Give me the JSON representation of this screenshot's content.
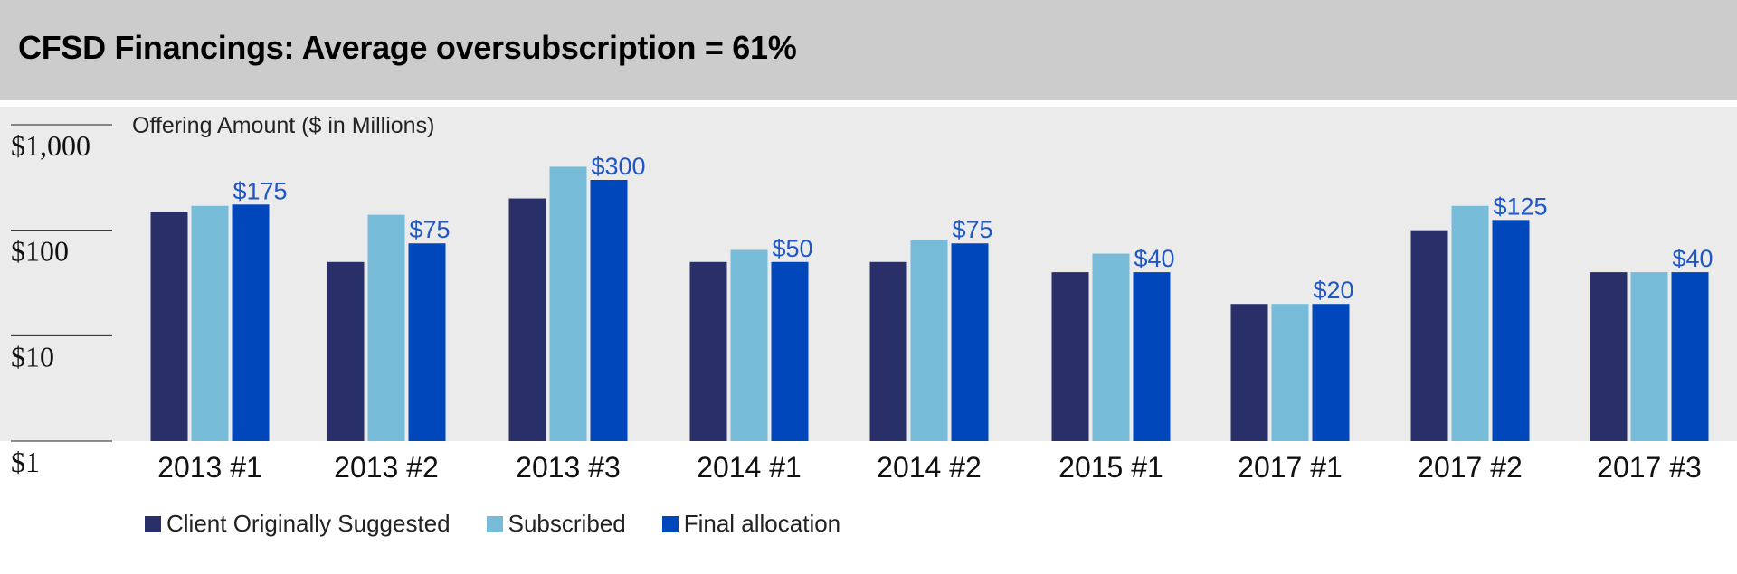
{
  "title": "CFSD Financings: Average oversubscription = 61%",
  "chart_data": {
    "type": "bar",
    "title": "CFSD Financings: Average oversubscription = 61%",
    "subtitle": "Offering Amount ($ in Millions)",
    "y_scale": "log",
    "ylim": [
      1,
      1000
    ],
    "y_ticks": [
      {
        "value": 1000,
        "label": "$1,000"
      },
      {
        "value": 100,
        "label": "$100"
      },
      {
        "value": 10,
        "label": "$10"
      },
      {
        "value": 1,
        "label": "$1"
      }
    ],
    "categories": [
      "2013 #1",
      "2013 #2",
      "2013 #3",
      "2014 #1",
      "2014 #2",
      "2015 #1",
      "2017 #1",
      "2017 #2",
      "2017 #3"
    ],
    "series": [
      {
        "name": "Client Originally Suggested",
        "color": "#293069",
        "values": [
          150,
          50,
          200,
          50,
          50,
          40,
          20,
          100,
          40
        ]
      },
      {
        "name": "Subscribed",
        "color": "#76bcd8",
        "values": [
          170,
          140,
          400,
          65,
          80,
          60,
          20,
          170,
          40
        ]
      },
      {
        "name": "Final allocation",
        "color": "#0047bb",
        "values": [
          175,
          75,
          300,
          50,
          75,
          40,
          20,
          125,
          40
        ]
      }
    ],
    "data_labels": [
      "$175",
      "$75",
      "$300",
      "$50",
      "$75",
      "$40",
      "$20",
      "$125",
      "$40"
    ],
    "legend_position": "bottom-left",
    "grid": false
  }
}
